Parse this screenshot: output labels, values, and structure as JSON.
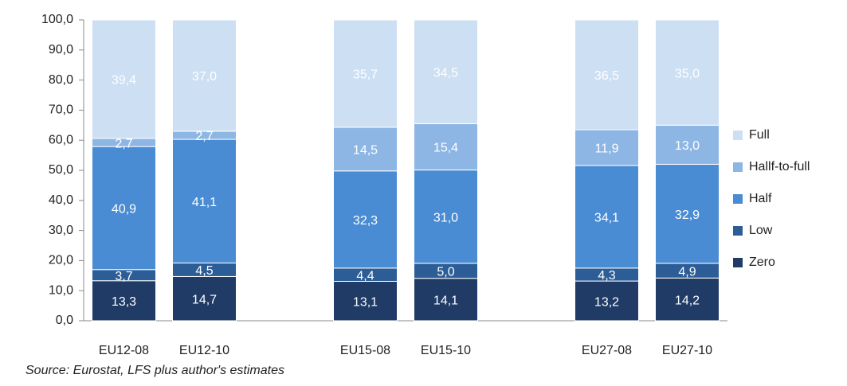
{
  "chart_data": {
    "type": "stacked_bar",
    "categories": [
      "EU12-08",
      "EU12-10",
      null,
      "EU15-08",
      "EU15-10",
      null,
      "EU27-08",
      "EU27-10"
    ],
    "series": [
      {
        "name": "Zero",
        "color": "#1f3b66",
        "values": [
          13.3,
          14.7,
          null,
          13.1,
          14.1,
          null,
          13.2,
          14.2
        ],
        "value_labels": [
          "13,3",
          "14,7",
          null,
          "13,1",
          "14,1",
          null,
          "13,2",
          "14,2"
        ]
      },
      {
        "name": "Low",
        "color": "#2c5d96",
        "values": [
          3.7,
          4.5,
          null,
          4.4,
          5.0,
          null,
          4.3,
          4.9
        ],
        "value_labels": [
          "3,7",
          "4,5",
          null,
          "4,4",
          "5,0",
          null,
          "4,3",
          "4,9"
        ]
      },
      {
        "name": "Half",
        "color": "#4a8cd3",
        "values": [
          40.9,
          41.1,
          null,
          32.3,
          31.0,
          null,
          34.1,
          32.9
        ],
        "value_labels": [
          "40,9",
          "41,1",
          null,
          "32,3",
          "31,0",
          null,
          "34,1",
          "32,9"
        ]
      },
      {
        "name": "Hallf-to-full",
        "color": "#8db6e4",
        "values": [
          2.7,
          2.7,
          null,
          14.5,
          15.4,
          null,
          11.9,
          13.0
        ],
        "value_labels": [
          "2,7",
          "2,7",
          null,
          "14,5",
          "15,4",
          null,
          "11,9",
          "13,0"
        ]
      },
      {
        "name": "Full",
        "color": "#cddff3",
        "values": [
          39.4,
          37.0,
          null,
          35.7,
          34.5,
          null,
          36.5,
          35.0
        ],
        "value_labels": [
          "39,4",
          "37,0",
          null,
          "35,7",
          "34,5",
          null,
          "36,5",
          "35,0"
        ]
      }
    ],
    "ylim": [
      0,
      100
    ],
    "yticks": [
      {
        "value": 0,
        "label": "0,0"
      },
      {
        "value": 10,
        "label": "10,0"
      },
      {
        "value": 20,
        "label": "20,0"
      },
      {
        "value": 30,
        "label": "30,0"
      },
      {
        "value": 40,
        "label": "40,0"
      },
      {
        "value": 50,
        "label": "50,0"
      },
      {
        "value": 60,
        "label": "60,0"
      },
      {
        "value": 70,
        "label": "70,0"
      },
      {
        "value": 80,
        "label": "80,0"
      },
      {
        "value": 90,
        "label": "90,0"
      },
      {
        "value": 100,
        "label": "100,0"
      }
    ],
    "legend": "right",
    "source": "Source: Eurostat, LFS plus author's estimates"
  }
}
